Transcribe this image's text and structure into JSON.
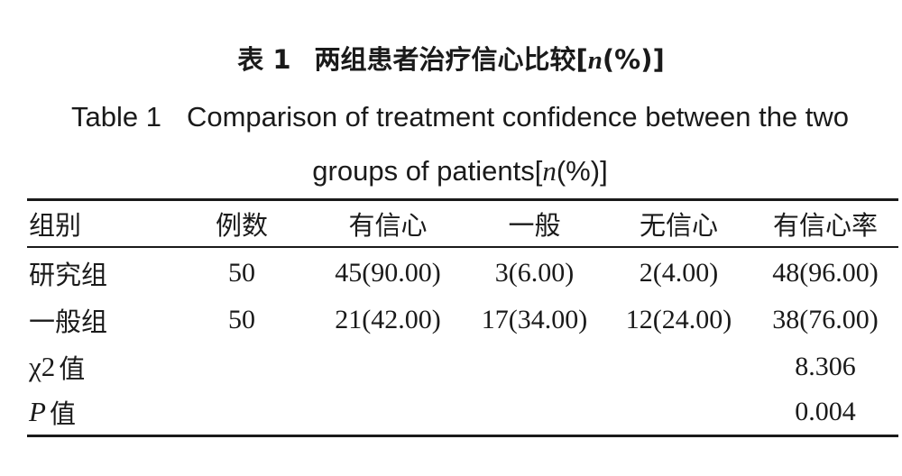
{
  "caption": {
    "cn_label": "表 1",
    "cn_title_prefix": "两组患者治疗信心比较[",
    "n_symbol": "n",
    "cn_title_suffix": "(%)]",
    "en_label": "Table 1",
    "en_title_line1": "Comparison of treatment confidence between the two",
    "en_title_line2_prefix": "groups of patients[",
    "en_title_line2_suffix": "(%)]"
  },
  "table": {
    "headers": [
      "组别",
      "例数",
      "有信心",
      "一般",
      "无信心",
      "有信心率"
    ],
    "rows": [
      [
        "研究组",
        "50",
        "45(90.00)",
        "3(6.00)",
        "2(4.00)",
        "48(96.00)"
      ],
      [
        "一般组",
        "50",
        "21(42.00)",
        "17(34.00)",
        "12(24.00)",
        "38(76.00)"
      ]
    ],
    "stats": [
      {
        "symbol": "χ",
        "superscript": "2",
        "label": "值",
        "value": "8.306"
      },
      {
        "symbol": "P",
        "superscript": "",
        "label": "值",
        "value": "0.004"
      }
    ]
  }
}
